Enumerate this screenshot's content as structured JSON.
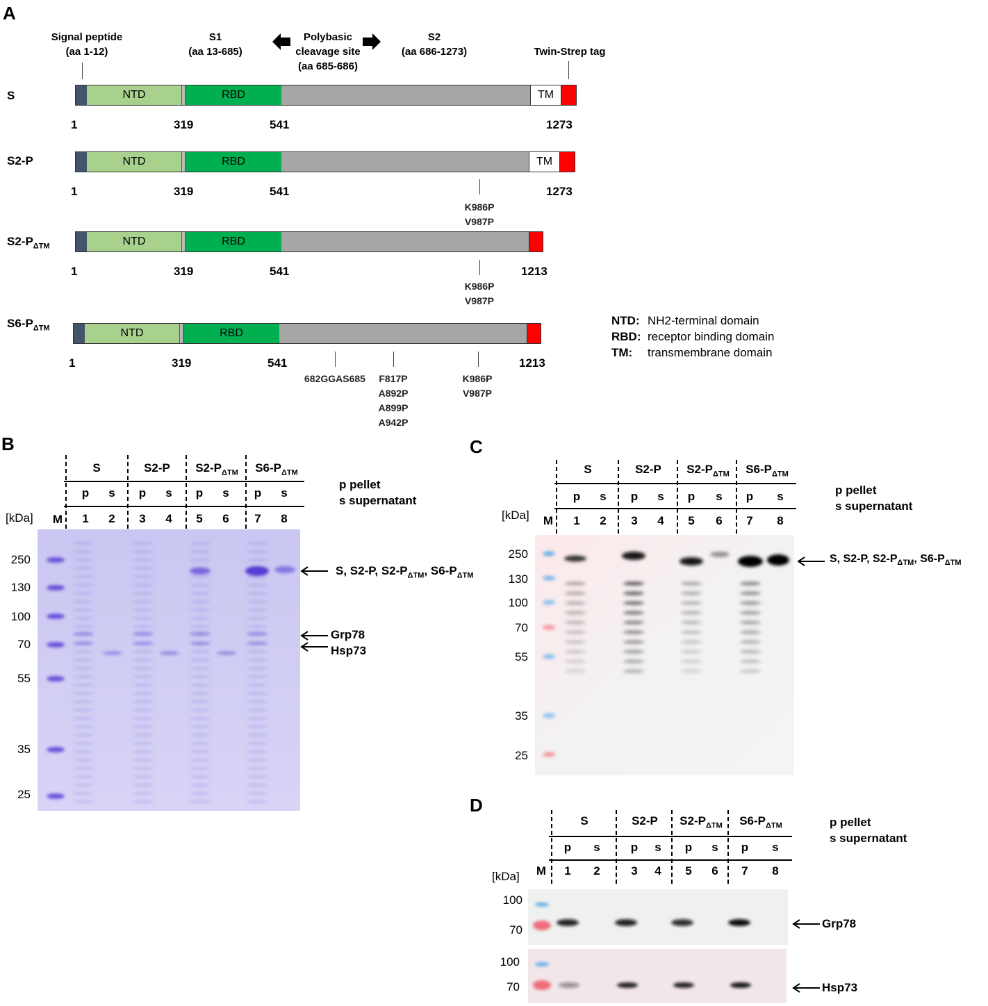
{
  "panelA": {
    "label": "A",
    "headers": {
      "signal_peptide": [
        "Signal peptide",
        "(aa 1-12)"
      ],
      "s1": [
        "S1",
        "(aa 13-685)"
      ],
      "cleavage": [
        "Polybasic",
        "cleavage site",
        "(aa 685-686)"
      ],
      "s2": [
        "S2",
        "(aa 686-1273)"
      ],
      "twin_strep": "Twin-Strep tag"
    },
    "constructs": [
      {
        "name": "S",
        "sub": "",
        "domains": {
          "ntd": "NTD",
          "rbd": "RBD",
          "tm": "TM"
        },
        "positions": [
          "1",
          "319",
          "541",
          "1273"
        ],
        "mutations": []
      },
      {
        "name": "S2-P",
        "sub": "",
        "domains": {
          "ntd": "NTD",
          "rbd": "RBD",
          "tm": "TM"
        },
        "positions": [
          "1",
          "319",
          "541",
          "1273"
        ],
        "mutations": [
          [
            "K986P",
            "V987P"
          ]
        ]
      },
      {
        "name": "S2-P",
        "sub": "ΔTM",
        "domains": {
          "ntd": "NTD",
          "rbd": "RBD"
        },
        "positions": [
          "1",
          "319",
          "541",
          "1213"
        ],
        "mutations": [
          [
            "K986P",
            "V987P"
          ]
        ]
      },
      {
        "name": "S6-P",
        "sub": "ΔTM",
        "domains": {
          "ntd": "NTD",
          "rbd": "RBD"
        },
        "positions": [
          "1",
          "319",
          "541",
          "1213"
        ],
        "mutations": [
          [
            "682GGAS685"
          ],
          [
            "F817P",
            "A892P",
            "A899P",
            "A942P"
          ],
          [
            "K986P",
            "V987P"
          ]
        ]
      }
    ],
    "legend": [
      {
        "abbr": "NTD:",
        "text": "NH2-terminal domain"
      },
      {
        "abbr": "RBD:",
        "text": "receptor binding domain"
      },
      {
        "abbr": "TM:",
        "text": "transmembrane domain"
      }
    ],
    "colors": {
      "signal": "#44546a",
      "ntd": "#a9d18e",
      "rbd": "#00b050",
      "s2": "#a6a6a6",
      "tag": "#ff0000"
    }
  },
  "panelB": {
    "label": "B",
    "groups": [
      {
        "name": "S",
        "sub": ""
      },
      {
        "name": "S2-P",
        "sub": ""
      },
      {
        "name": "S2-P",
        "sub": "ΔTM"
      },
      {
        "name": "S6-P",
        "sub": "ΔTM"
      }
    ],
    "fractions": [
      "p",
      "s",
      "p",
      "s",
      "p",
      "s",
      "p",
      "s"
    ],
    "lanes": [
      "1",
      "2",
      "3",
      "4",
      "5",
      "6",
      "7",
      "8"
    ],
    "marker_label": "M",
    "unit": "[kDa]",
    "markers": [
      "250",
      "130",
      "100",
      "70",
      "55",
      "35",
      "25"
    ],
    "legend": [
      "p pellet",
      "s supernatant"
    ],
    "annotations": [
      {
        "text": "S, S2-P, S2-P",
        "sub": "ΔTM",
        "tail": ", S6-P",
        "sub2": "ΔTM"
      },
      {
        "text": "Grp78"
      },
      {
        "text": "Hsp73"
      }
    ]
  },
  "panelC": {
    "label": "C",
    "groups": [
      {
        "name": "S",
        "sub": ""
      },
      {
        "name": "S2-P",
        "sub": ""
      },
      {
        "name": "S2-P",
        "sub": "ΔTM"
      },
      {
        "name": "S6-P",
        "sub": "ΔTM"
      }
    ],
    "fractions": [
      "p",
      "s",
      "p",
      "s",
      "p",
      "s",
      "p",
      "s"
    ],
    "lanes": [
      "1",
      "2",
      "3",
      "4",
      "5",
      "6",
      "7",
      "8"
    ],
    "marker_label": "M",
    "unit": "[kDa]",
    "markers": [
      "250",
      "130",
      "100",
      "70",
      "55",
      "35",
      "25"
    ],
    "legend": [
      "p pellet",
      "s supernatant"
    ],
    "annotation": {
      "text": "S, S2-P, S2-P",
      "sub": "ΔTM",
      "tail": ", S6-P",
      "sub2": "ΔTM"
    }
  },
  "panelD": {
    "label": "D",
    "groups": [
      {
        "name": "S",
        "sub": ""
      },
      {
        "name": "S2-P",
        "sub": ""
      },
      {
        "name": "S2-P",
        "sub": "ΔTM"
      },
      {
        "name": "S6-P",
        "sub": "ΔTM"
      }
    ],
    "fractions": [
      "p",
      "s",
      "p",
      "s",
      "p",
      "s",
      "p",
      "s"
    ],
    "lanes": [
      "1",
      "2",
      "3",
      "4",
      "5",
      "6",
      "7",
      "8"
    ],
    "marker_label": "M",
    "unit": "[kDa]",
    "legend": [
      "p pellet",
      "s supernatant"
    ],
    "blots": [
      {
        "markers": [
          "100",
          "70"
        ],
        "target": "Grp78"
      },
      {
        "markers": [
          "100",
          "70"
        ],
        "target": "Hsp73"
      }
    ]
  }
}
